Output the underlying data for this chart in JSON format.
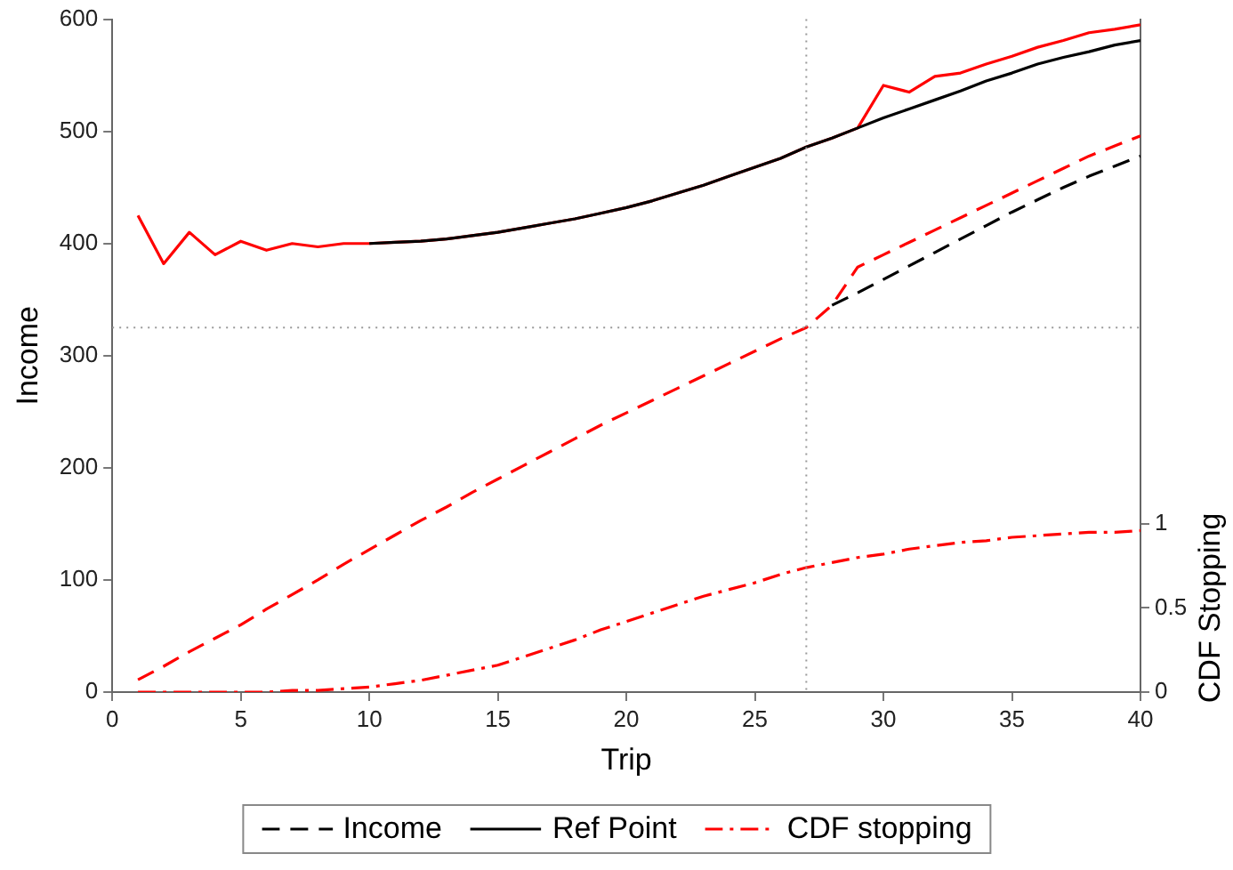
{
  "chart_data": {
    "type": "line",
    "xlabel": "Trip",
    "ylabel": "Income",
    "y2label": "CDF Stopping",
    "x": [
      1,
      2,
      3,
      4,
      5,
      6,
      7,
      8,
      9,
      10,
      11,
      12,
      13,
      14,
      15,
      16,
      17,
      18,
      19,
      20,
      21,
      22,
      23,
      24,
      25,
      26,
      27,
      28,
      29,
      30,
      31,
      32,
      33,
      34,
      35,
      36,
      37,
      38,
      39,
      40
    ],
    "series": [
      {
        "color": "#ff0000",
        "line_style": "dashed",
        "values": [
          11,
          23,
          36,
          48,
          60,
          74,
          87,
          100,
          114,
          127,
          140,
          153,
          165,
          178,
          190,
          202,
          214,
          226,
          238,
          249,
          260,
          271,
          282,
          293,
          304,
          315,
          325,
          345,
          379,
          390,
          401,
          412,
          423,
          434,
          445,
          456,
          467,
          478,
          487,
          496
        ]
      },
      {
        "name": "Income",
        "color": "#000000",
        "line_style": "dashed",
        "values": [
          null,
          null,
          null,
          null,
          null,
          null,
          null,
          null,
          null,
          null,
          null,
          null,
          null,
          null,
          null,
          null,
          null,
          null,
          null,
          null,
          null,
          null,
          null,
          null,
          null,
          null,
          null,
          345,
          356,
          368,
          380,
          392,
          404,
          416,
          428,
          439,
          450,
          460,
          469,
          478
        ]
      },
      {
        "name": "Ref Point",
        "color": "#000000",
        "line_style": "solid",
        "values": [
          null,
          null,
          null,
          null,
          null,
          null,
          null,
          null,
          null,
          400,
          401,
          402,
          404,
          407,
          410,
          414,
          418,
          422,
          427,
          432,
          438,
          445,
          452,
          460,
          468,
          476,
          486,
          494,
          503,
          512,
          520,
          528,
          536,
          545,
          552,
          560,
          566,
          571,
          577,
          581
        ]
      },
      {
        "color": "#ff0000",
        "line_style": "solid",
        "values": [
          425,
          382,
          410,
          390,
          402,
          394,
          400,
          397,
          400,
          400,
          401,
          402,
          404,
          407,
          410,
          414,
          418,
          422,
          427,
          432,
          438,
          445,
          452,
          460,
          468,
          476,
          486,
          494,
          503,
          541,
          535,
          549,
          552,
          560,
          567,
          575,
          581,
          588,
          591,
          595
        ]
      },
      {
        "name": "CDF stopping",
        "color": "#ff0000",
        "line_style": "dashdot",
        "axis": "y2",
        "values": [
          0,
          0,
          0,
          0,
          0,
          0,
          0.01,
          0.01,
          0.02,
          0.03,
          0.05,
          0.07,
          0.1,
          0.13,
          0.16,
          0.21,
          0.26,
          0.31,
          0.37,
          0.42,
          0.47,
          0.52,
          0.57,
          0.61,
          0.65,
          0.7,
          0.74,
          0.77,
          0.8,
          0.82,
          0.85,
          0.87,
          0.89,
          0.9,
          0.92,
          0.93,
          0.94,
          0.95,
          0.95,
          0.96
        ]
      }
    ],
    "xlim": [
      0,
      40
    ],
    "xticks": [
      0,
      5,
      10,
      15,
      20,
      25,
      30,
      35,
      40
    ],
    "ylim": [
      0,
      600
    ],
    "yticks": [
      0,
      100,
      200,
      300,
      400,
      500,
      600
    ],
    "y2lim": [
      0,
      4
    ],
    "y2ticks": [
      0,
      0.5,
      1
    ],
    "ref_lines": [
      {
        "axis": "x",
        "value": 27,
        "color": "#999999",
        "line_style": "dotted"
      },
      {
        "axis": "y",
        "value": 325,
        "color": "#999999",
        "line_style": "dotted"
      }
    ],
    "legend": "bottom",
    "grid": false,
    "marker": "none"
  }
}
